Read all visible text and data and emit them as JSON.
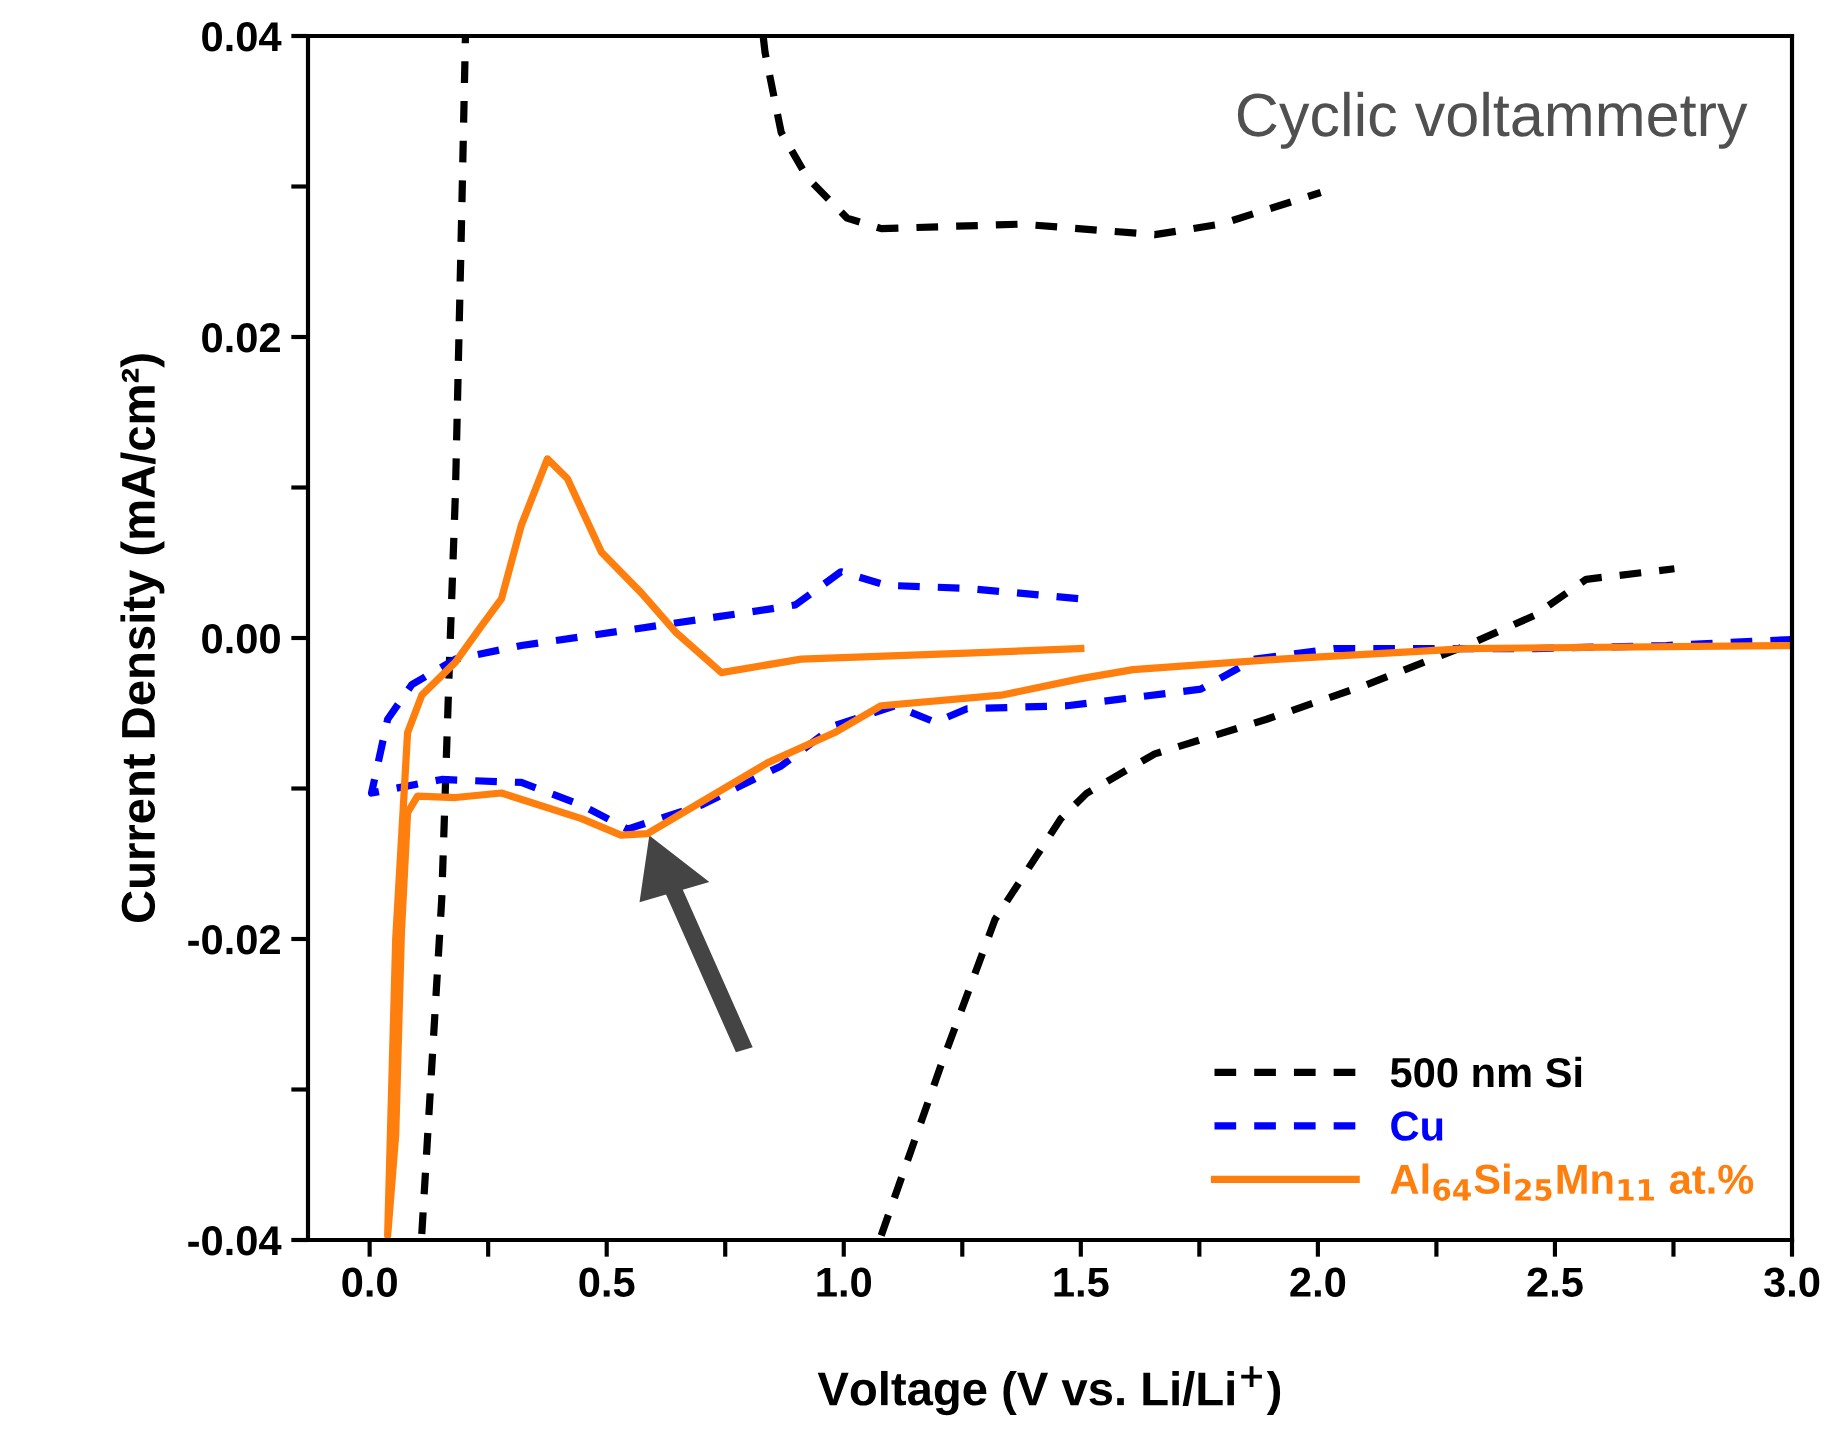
{
  "chart_data": {
    "type": "line",
    "title": "Cyclic voltammetry",
    "xlabel": "Voltage (V vs. Li/Li$^{+}$)",
    "ylabel": "Current Density (mA/cm²)",
    "xlim": [
      -0.13,
      3.0
    ],
    "ylim": [
      -0.04,
      0.04
    ],
    "xticks": [
      {
        "value": 0.0,
        "label": "0.0"
      },
      {
        "value": 0.25,
        "label": null
      },
      {
        "value": 0.5,
        "label": "0.5"
      },
      {
        "value": 0.75,
        "label": null
      },
      {
        "value": 1.0,
        "label": "1.0"
      },
      {
        "value": 1.25,
        "label": null
      },
      {
        "value": 1.5,
        "label": "1.5"
      },
      {
        "value": 1.75,
        "label": null
      },
      {
        "value": 2.0,
        "label": "2.0"
      },
      {
        "value": 2.25,
        "label": null
      },
      {
        "value": 2.5,
        "label": "2.5"
      },
      {
        "value": 2.75,
        "label": null
      },
      {
        "value": 3.0,
        "label": "3.0"
      }
    ],
    "yticks": [
      {
        "value": -0.04,
        "label": "-0.04"
      },
      {
        "value": -0.03,
        "label": null
      },
      {
        "value": -0.02,
        "label": "-0.02"
      },
      {
        "value": -0.01,
        "label": null
      },
      {
        "value": 0.0,
        "label": "0.00"
      },
      {
        "value": 0.01,
        "label": null
      },
      {
        "value": 0.02,
        "label": "0.02"
      },
      {
        "value": 0.03,
        "label": null
      },
      {
        "value": 0.04,
        "label": "0.04"
      }
    ],
    "grid": false,
    "legend": "bottom right",
    "marker": "none",
    "series": [
      {
        "name": "500 nm Si",
        "color": "#000000",
        "line_style": "dashed",
        "x": [
          0.11,
          0.152,
          0.169,
          0.181,
          0.194,
          0.202,
          null,
          0.83,
          0.834,
          0.868,
          0.923,
          1.007,
          1.079,
          1.374,
          1.656,
          1.795,
          2.006,
          null,
          1.079,
          1.205,
          1.319,
          1.458,
          1.513,
          1.656,
          1.892,
          2.103,
          2.314,
          2.457,
          2.566,
          2.752
        ],
        "values": [
          -0.0396,
          -0.0174,
          -0.001,
          0.0097,
          0.0279,
          0.0399,
          null,
          0.04,
          0.0389,
          0.0336,
          0.0306,
          0.0279,
          0.0272,
          0.0275,
          0.0268,
          0.0275,
          0.0296,
          null,
          -0.0397,
          -0.0284,
          -0.0187,
          -0.012,
          -0.0103,
          -0.0077,
          -0.0054,
          -0.0031,
          -0.0005,
          0.0015,
          0.0039,
          0.0046
        ]
      },
      {
        "name": "Cu",
        "color": "#0000ff",
        "line_style": "dashed",
        "x": [
          3.0,
          2.735,
          2.457,
          2.035,
          1.867,
          1.753,
          1.471,
          1.26,
          1.193,
          1.108,
          0.982,
          0.868,
          0.7,
          0.544,
          0.447,
          0.32,
          0.152,
          0.004,
          0.038,
          0.089,
          0.181,
          0.32,
          0.56,
          0.839,
          0.898,
          0.994,
          1.09,
          1.26,
          1.5
        ],
        "values": [
          -0.0001,
          -0.0005,
          -0.0007,
          -0.0007,
          -0.0014,
          -0.0034,
          -0.0045,
          -0.0047,
          -0.0056,
          -0.0045,
          -0.0058,
          -0.0085,
          -0.0111,
          -0.0127,
          -0.0111,
          -0.0096,
          -0.0094,
          -0.0103,
          -0.0054,
          -0.0031,
          -0.0014,
          -0.0005,
          0.0006,
          0.0019,
          0.0022,
          0.0044,
          0.0035,
          0.0033,
          0.0026
        ]
      },
      {
        "name": "Al$_{64}$Si$_{25}$Mn$_{11}$ at.%",
        "color": "#ff7f0e",
        "line_style": "solid",
        "x": [
          3.0,
          2.314,
          1.92,
          1.61,
          1.5,
          1.332,
          1.079,
          0.98,
          0.839,
          0.586,
          0.53,
          0.447,
          0.278,
          0.181,
          0.101,
          0.08,
          0.067,
          0.055,
          0.038,
          0.055,
          0.08,
          0.11,
          0.181,
          0.236,
          0.278,
          0.32,
          0.375,
          0.417,
          0.489,
          0.573,
          0.645,
          0.742,
          0.91,
          1.26,
          1.5
        ],
        "values": [
          -0.0005,
          -0.0007,
          -0.0014,
          -0.0021,
          -0.0027,
          -0.0038,
          -0.0045,
          -0.0063,
          -0.0083,
          -0.013,
          -0.0131,
          -0.012,
          -0.0103,
          -0.0106,
          -0.0105,
          -0.0116,
          -0.0196,
          -0.033,
          -0.0397,
          -0.02,
          -0.0063,
          -0.0038,
          -0.0016,
          0.0008,
          0.0026,
          0.0075,
          0.0119,
          0.0106,
          0.0057,
          0.003,
          0.0004,
          -0.0023,
          -0.0014,
          -0.001,
          -0.0007
        ]
      }
    ]
  }
}
